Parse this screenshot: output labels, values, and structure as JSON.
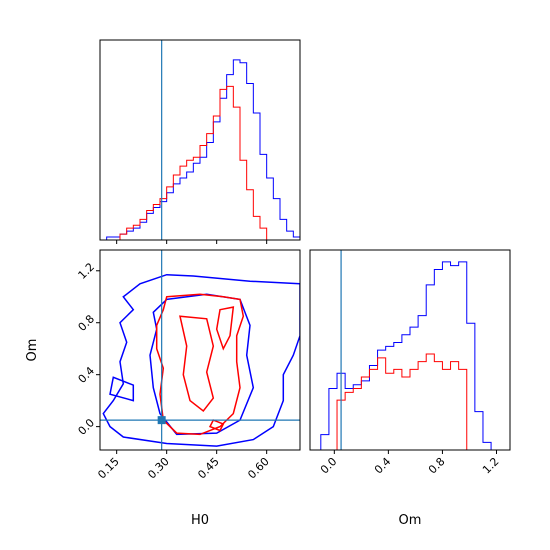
{
  "chart_data": [
    {
      "type": "histogram",
      "panel": "H0 marginal",
      "x_range": [
        0.1,
        0.7
      ],
      "bin_edges": [
        0.1,
        0.12,
        0.14,
        0.16,
        0.18,
        0.2,
        0.22,
        0.24,
        0.26,
        0.28,
        0.3,
        0.32,
        0.34,
        0.36,
        0.38,
        0.4,
        0.42,
        0.44,
        0.46,
        0.48,
        0.5,
        0.52,
        0.54,
        0.56,
        0.58,
        0.6,
        0.62,
        0.64,
        0.66,
        0.68,
        0.7
      ],
      "series": [
        {
          "name": "",
          "color": "#0000ff",
          "counts": [
            0,
            1,
            1,
            2,
            3,
            4,
            6,
            9,
            11,
            13,
            16,
            19,
            21,
            23,
            26,
            28,
            33,
            40,
            48,
            56,
            61,
            60,
            53,
            43,
            29,
            21,
            14,
            7,
            3,
            1
          ]
        },
        {
          "name": "",
          "color": "#ff0000",
          "counts": [
            0,
            0,
            0,
            2,
            4,
            5,
            7,
            10,
            12,
            14,
            18,
            22,
            25,
            27,
            28,
            32,
            36,
            42,
            51,
            52,
            45,
            27,
            17,
            8,
            4,
            0,
            0,
            0,
            0,
            0
          ]
        }
      ],
      "truth_value": 0.285,
      "truth_color": "#1f77b4",
      "ylim": [
        0,
        65
      ]
    },
    {
      "type": "contour",
      "panel": "H0 vs Om",
      "xlabel": "H0",
      "ylabel": "Om",
      "xlim": [
        0.1,
        0.7
      ],
      "ylim": [
        -0.18,
        1.36
      ],
      "xticks": [
        "0.15",
        "0.30",
        "0.45",
        "0.60"
      ],
      "xtick_values": [
        0.15,
        0.3,
        0.45,
        0.6
      ],
      "yticks": [
        "0.0",
        "0.4",
        "0.8",
        "1.2"
      ],
      "ytick_values": [
        0.0,
        0.4,
        0.8,
        1.2
      ],
      "truth": {
        "H0": 0.285,
        "Om": 0.05
      },
      "truth_color": "#1f77b4",
      "series": [
        {
          "name": "",
          "color": "#0000ff",
          "contours": [
            [
              [
                0.7,
                1.1
              ],
              [
                0.55,
                1.12
              ],
              [
                0.38,
                1.16
              ],
              [
                0.3,
                1.17
              ],
              [
                0.22,
                1.1
              ],
              [
                0.17,
                1.0
              ],
              [
                0.2,
                0.9
              ],
              [
                0.16,
                0.8
              ],
              [
                0.18,
                0.65
              ],
              [
                0.16,
                0.5
              ],
              [
                0.17,
                0.33
              ],
              [
                0.14,
                0.2
              ],
              [
                0.11,
                0.1
              ],
              [
                0.13,
                0.0
              ],
              [
                0.17,
                -0.08
              ],
              [
                0.3,
                -0.13
              ],
              [
                0.45,
                -0.15
              ],
              [
                0.56,
                -0.1
              ],
              [
                0.62,
                0.0
              ],
              [
                0.65,
                0.2
              ],
              [
                0.65,
                0.4
              ],
              [
                0.68,
                0.55
              ],
              [
                0.7,
                0.7
              ]
            ],
            [
              [
                0.2,
                0.2
              ],
              [
                0.13,
                0.25
              ],
              [
                0.14,
                0.38
              ],
              [
                0.2,
                0.32
              ]
            ],
            [
              [
                0.3,
                0.98
              ],
              [
                0.42,
                1.02
              ],
              [
                0.52,
                0.98
              ],
              [
                0.55,
                0.78
              ],
              [
                0.54,
                0.55
              ],
              [
                0.56,
                0.3
              ],
              [
                0.52,
                0.05
              ],
              [
                0.45,
                -0.05
              ],
              [
                0.33,
                -0.06
              ],
              [
                0.28,
                0.1
              ],
              [
                0.26,
                0.3
              ],
              [
                0.25,
                0.55
              ],
              [
                0.27,
                0.75
              ],
              [
                0.26,
                0.88
              ]
            ]
          ]
        },
        {
          "name": "",
          "color": "#ff0000",
          "contours": [
            [
              [
                0.3,
                1.0
              ],
              [
                0.4,
                1.02
              ],
              [
                0.47,
                1.0
              ],
              [
                0.52,
                0.98
              ],
              [
                0.53,
                0.85
              ],
              [
                0.51,
                0.7
              ],
              [
                0.51,
                0.5
              ],
              [
                0.52,
                0.3
              ],
              [
                0.5,
                0.1
              ],
              [
                0.46,
                0.0
              ],
              [
                0.4,
                -0.06
              ],
              [
                0.33,
                -0.05
              ],
              [
                0.29,
                0.05
              ],
              [
                0.28,
                0.25
              ],
              [
                0.29,
                0.45
              ],
              [
                0.27,
                0.6
              ],
              [
                0.27,
                0.78
              ],
              [
                0.29,
                0.9
              ]
            ],
            [
              [
                0.34,
                0.85
              ],
              [
                0.36,
                0.62
              ],
              [
                0.35,
                0.4
              ],
              [
                0.37,
                0.2
              ],
              [
                0.41,
                0.12
              ],
              [
                0.44,
                0.22
              ],
              [
                0.42,
                0.42
              ],
              [
                0.44,
                0.62
              ],
              [
                0.42,
                0.83
              ]
            ],
            [
              [
                0.46,
                0.9
              ],
              [
                0.5,
                0.92
              ],
              [
                0.49,
                0.7
              ],
              [
                0.47,
                0.6
              ],
              [
                0.45,
                0.75
              ]
            ],
            [
              [
                0.44,
                0.05
              ],
              [
                0.47,
                0.02
              ],
              [
                0.46,
                -0.03
              ],
              [
                0.43,
                0.0
              ]
            ]
          ]
        }
      ]
    },
    {
      "type": "histogram",
      "panel": "Om marginal",
      "xlabel": "Om",
      "x_range": [
        -0.18,
        1.3
      ],
      "xticks": [
        "0.0",
        "0.4",
        "0.8",
        "1.2"
      ],
      "xtick_values": [
        0.0,
        0.4,
        0.8,
        1.2
      ],
      "bin_edges": [
        -0.1,
        -0.04,
        0.02,
        0.08,
        0.14,
        0.2,
        0.26,
        0.32,
        0.38,
        0.44,
        0.5,
        0.56,
        0.62,
        0.68,
        0.74,
        0.8,
        0.86,
        0.92,
        0.98,
        1.04,
        1.1,
        1.16
      ],
      "series": [
        {
          "name": "",
          "color": "#0000ff",
          "counts": [
            4,
            16,
            20,
            16,
            17,
            18,
            22,
            26,
            27,
            28,
            30,
            32,
            35,
            43,
            47,
            49,
            48,
            49,
            33,
            10,
            2
          ]
        },
        {
          "name": "",
          "color": "#ff0000",
          "counts": [
            0,
            0,
            13,
            15,
            16,
            19,
            21,
            24,
            20,
            21,
            19,
            21,
            23,
            25,
            23,
            21,
            23,
            21,
            0,
            0,
            0
          ]
        }
      ],
      "truth_value": 0.05,
      "truth_color": "#1f77b4",
      "ylim": [
        0,
        50
      ]
    }
  ]
}
